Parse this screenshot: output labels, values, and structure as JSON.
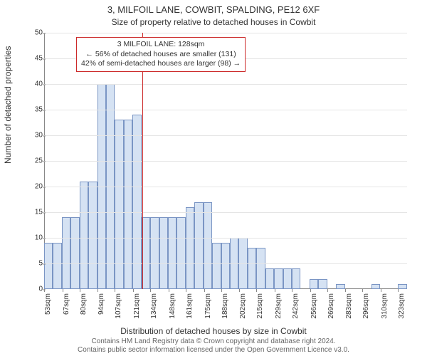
{
  "title": "3, MILFOIL LANE, COWBIT, SPALDING, PE12 6XF",
  "subtitle": "Size of property relative to detached houses in Cowbit",
  "ylabel": "Number of detached properties",
  "xlabel": "Distribution of detached houses by size in Cowbit",
  "footer_line1": "Contains HM Land Registry data © Crown copyright and database right 2024.",
  "footer_line2": "Contains public sector information licensed under the Open Government Licence v3.0.",
  "chart": {
    "type": "histogram",
    "ylim": [
      0,
      50
    ],
    "ytick_step": 5,
    "x_min": 53,
    "x_max": 330,
    "xtick_step": 13.5,
    "xtick_unit": "sqm",
    "bar_fill": "#d5e2f3",
    "bar_stroke": "#7a95c4",
    "grid_color": "#e5e5e5",
    "axis_color": "#888888",
    "ref_color": "#cc2a2a",
    "background": "#ffffff",
    "bar_width": 6.75,
    "values": [
      9,
      9,
      14,
      14,
      21,
      21,
      40,
      40,
      33,
      33,
      34,
      14,
      14,
      14,
      14,
      14,
      16,
      17,
      17,
      9,
      9,
      10,
      10,
      8,
      8,
      4,
      4,
      4,
      4,
      0,
      2,
      2,
      0,
      1,
      0,
      0,
      0,
      1,
      0,
      0,
      1
    ],
    "ref_value": 128,
    "anno_lines": [
      "3 MILFOIL LANE: 128sqm",
      "← 56% of detached houses are smaller (131)",
      "42% of semi-detached houses are larger (98) →"
    ],
    "xticks": [
      53,
      67,
      80,
      94,
      107,
      121,
      134,
      148,
      161,
      175,
      188,
      202,
      215,
      229,
      242,
      256,
      269,
      283,
      296,
      310,
      323
    ]
  }
}
